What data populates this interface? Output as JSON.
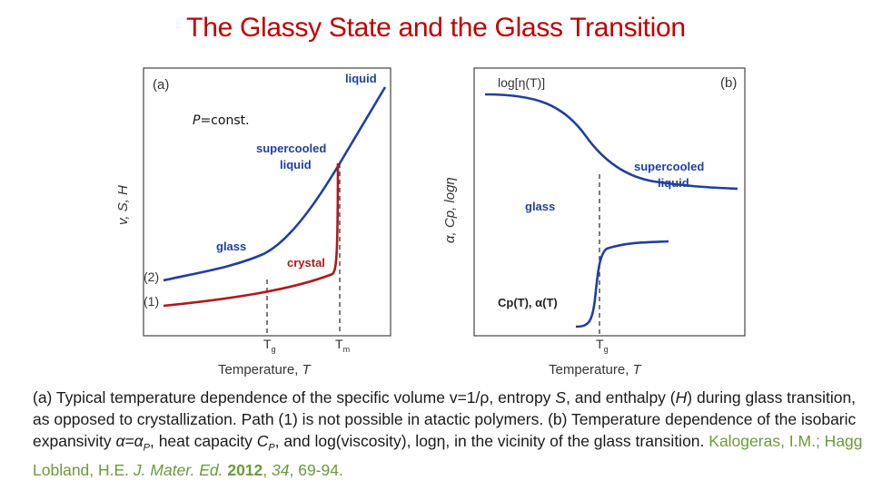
{
  "title": "The Glassy State and the Glass Transition",
  "panel_a": {
    "label": "(a)",
    "condition": "P=const.",
    "y_axis_label": "v, S, H",
    "x_axis_label": "Temperature, T",
    "tick_tg": "T",
    "tick_tg_sub": "g",
    "tick_tm": "T",
    "tick_tm_sub": "m",
    "labels": {
      "liquid": "liquid",
      "supercooled_line1": "supercooled",
      "supercooled_line2": "liquid",
      "glass": "glass",
      "crystal": "crystal",
      "path2": "(2)",
      "path1": "(1)"
    }
  },
  "panel_b": {
    "label": "(b)",
    "log_eta": "log[η(T)]",
    "y_axis_label": "α, Cp, logη",
    "x_axis_label": "Temperature, T",
    "tick_tg": "T",
    "tick_tg_sub": "g",
    "labels": {
      "supercooled_line1": "supercooled",
      "supercooled_line2": "liquid",
      "glass": "glass",
      "cp_alpha": "Cp(T), α(T)"
    }
  },
  "caption": {
    "part1": "(a) Typical temperature dependence of the specific volume v=1/ρ, entropy ",
    "S": "S",
    "part2": ", and enthalpy (",
    "H": "H",
    "part3": ") during glass transition, as opposed to crystallization. Path (1) is not possible in atactic polymers. (b) Temperature dependence of the isobaric expansivity ",
    "alpha": "α=α",
    "alpha_sub": "P",
    "part4": ", heat capacity ",
    "Cp": "C",
    "Cp_sub": "P",
    "part5": ", and log(viscosity), logη, in the vicinity of the glass transition. ",
    "cite_authors": "Kalogeras, I.M.; Hagg Lobland, H.E. ",
    "cite_journal": "J. Mater. Ed.",
    "cite_year": "2012",
    "cite_sep": ", ",
    "cite_volume": "34",
    "cite_pages": ", 69-94."
  },
  "colors": {
    "title": "#c00000",
    "glass_curve": "#1f3fa0",
    "crystal_curve": "#b01818",
    "citation": "#6a9a3a"
  }
}
